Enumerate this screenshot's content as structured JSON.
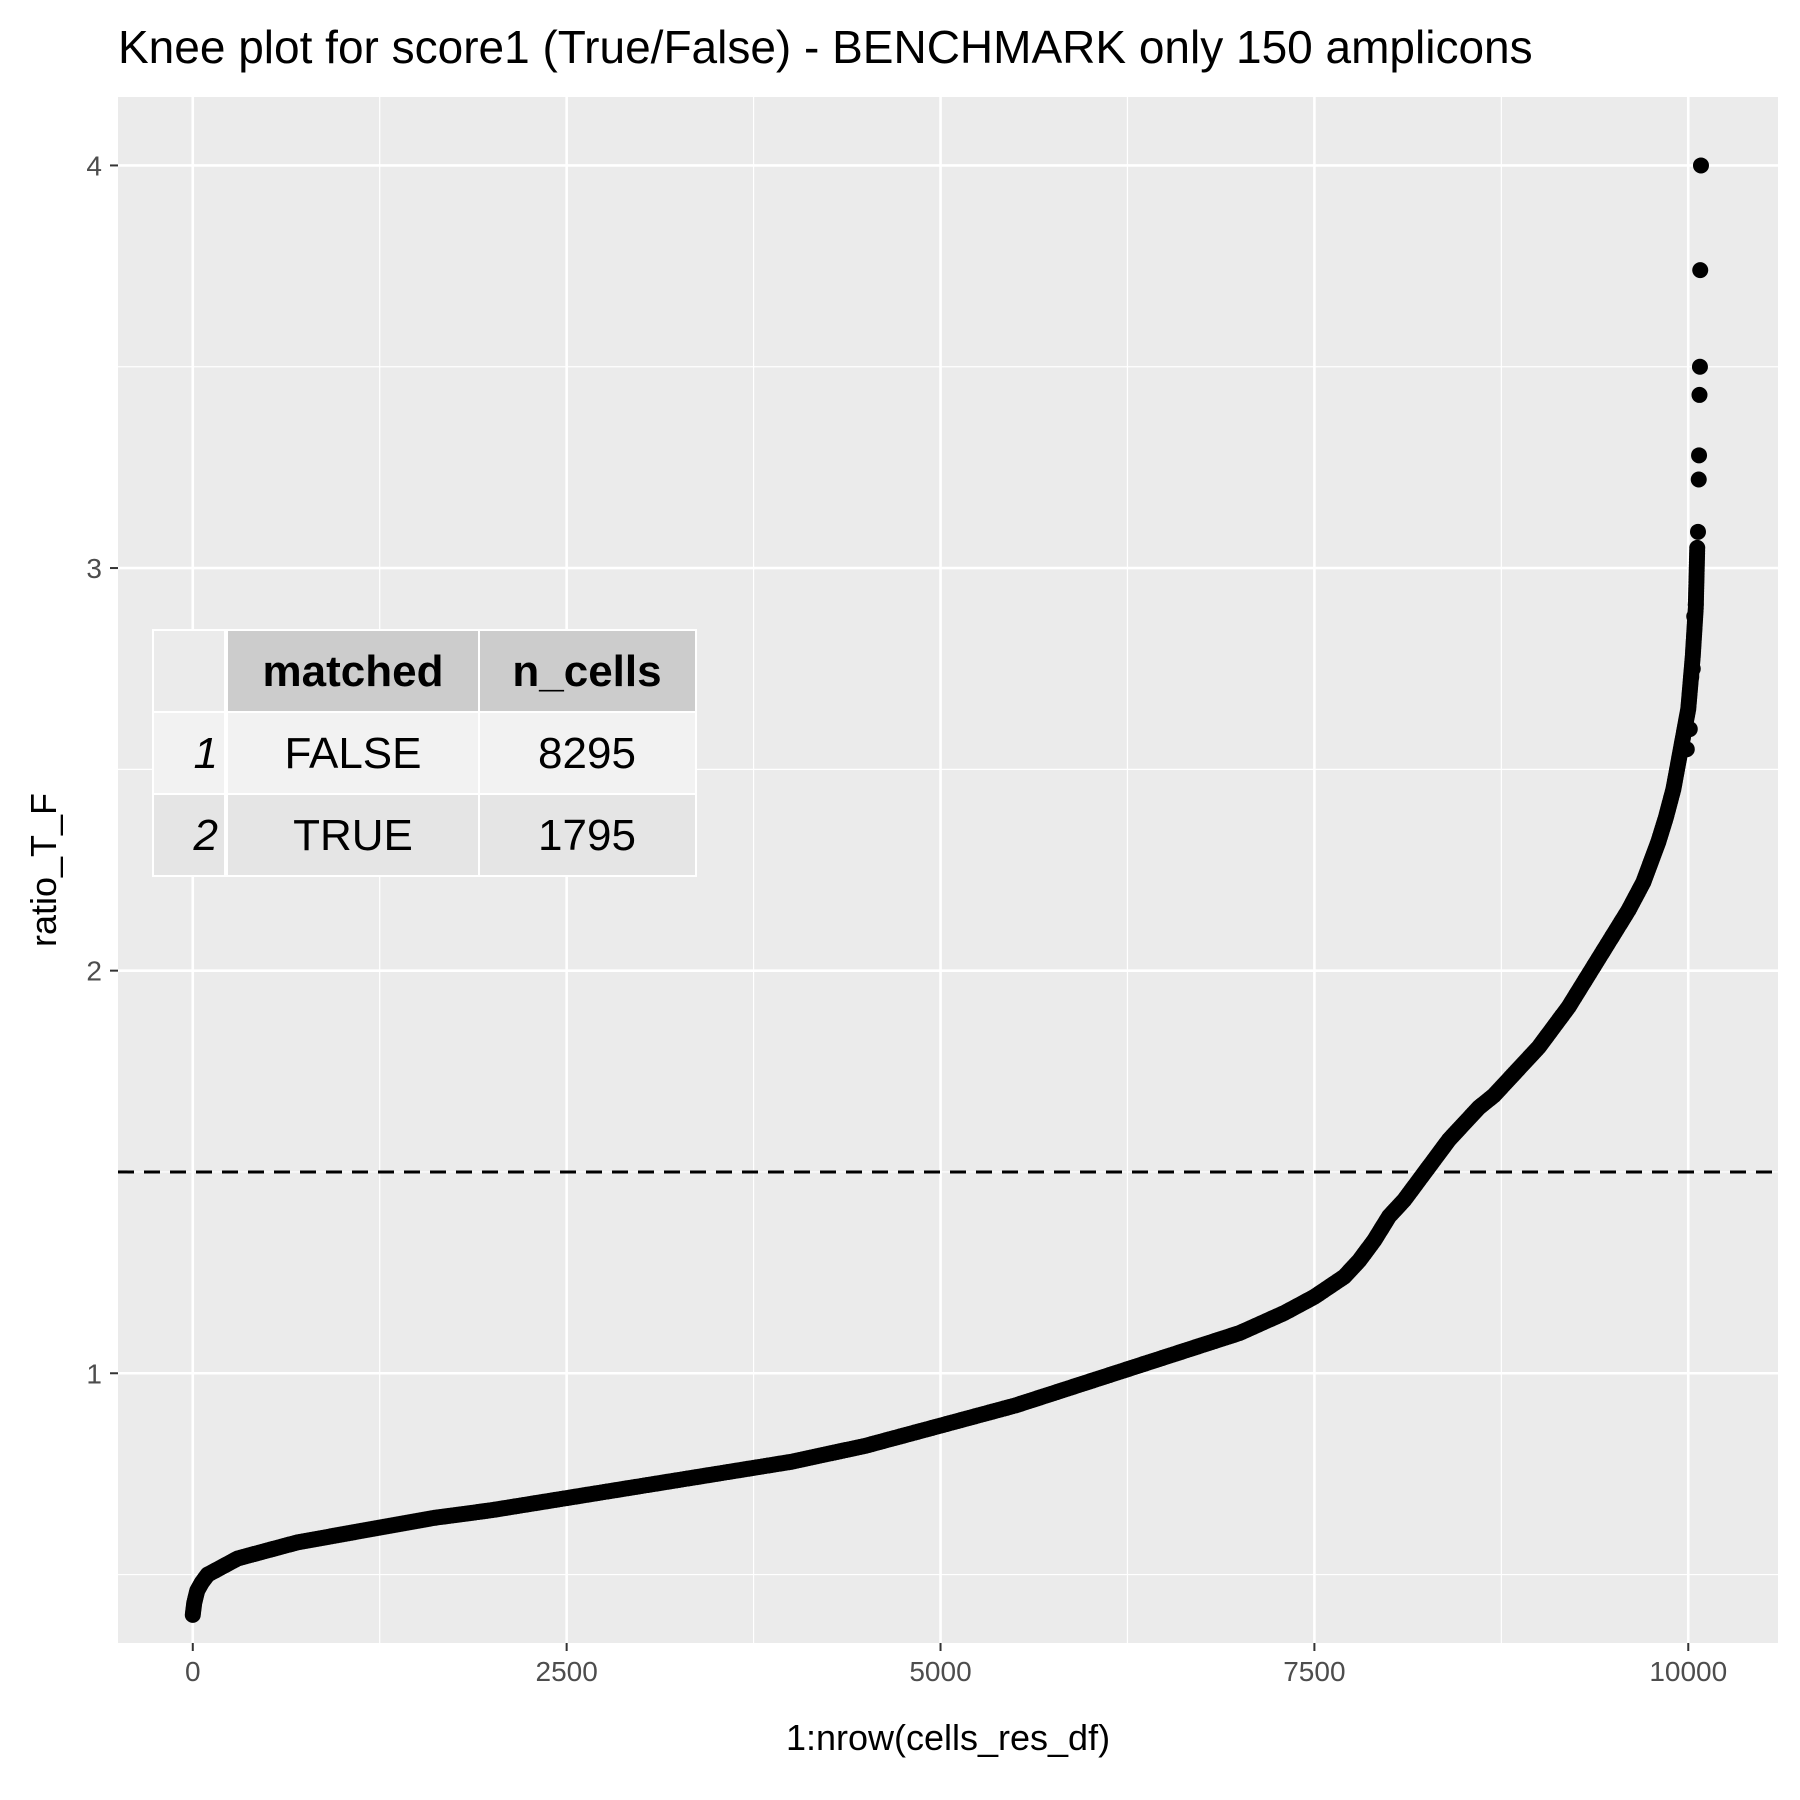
{
  "chart_data": {
    "type": "scatter",
    "title": "Knee plot for score1 (True/False) - BENCHMARK only 150 amplicons",
    "xlabel": "1:nrow(cells_res_df)",
    "ylabel": "ratio_T_F",
    "xlim": [
      -500,
      10600
    ],
    "ylim": [
      0.33,
      4.17
    ],
    "xticks": [
      0,
      2500,
      5000,
      7500,
      10000
    ],
    "xtick_labels": [
      "0",
      "2500",
      "5000",
      "7500",
      "10000"
    ],
    "yticks": [
      1,
      2,
      3,
      4
    ],
    "ytick_labels": [
      "1",
      "2",
      "3",
      "4"
    ],
    "grid": true,
    "hline": {
      "y": 1.5,
      "style": "dashed"
    },
    "point_color": "#000000",
    "background": "#ebebeb",
    "curve": {
      "x": [
        0,
        10,
        30,
        60,
        100,
        200,
        300,
        500,
        700,
        1000,
        1300,
        1600,
        2000,
        2500,
        3000,
        3500,
        4000,
        4500,
        5000,
        5500,
        6000,
        6500,
        7000,
        7300,
        7500,
        7700,
        7800,
        7900,
        8000,
        8100,
        8200,
        8300,
        8400,
        8500,
        8600,
        8700,
        8800,
        8900,
        9000,
        9100,
        9200,
        9300,
        9400,
        9500,
        9600,
        9700,
        9750,
        9800,
        9850,
        9900,
        9950,
        10000,
        10030,
        10050,
        10060
      ],
      "y": [
        0.4,
        0.43,
        0.46,
        0.48,
        0.5,
        0.52,
        0.54,
        0.56,
        0.58,
        0.6,
        0.62,
        0.64,
        0.66,
        0.69,
        0.72,
        0.75,
        0.78,
        0.82,
        0.87,
        0.92,
        0.98,
        1.04,
        1.1,
        1.15,
        1.19,
        1.24,
        1.28,
        1.33,
        1.39,
        1.43,
        1.48,
        1.53,
        1.58,
        1.62,
        1.66,
        1.69,
        1.73,
        1.77,
        1.81,
        1.86,
        1.91,
        1.97,
        2.03,
        2.09,
        2.15,
        2.22,
        2.27,
        2.32,
        2.38,
        2.45,
        2.55,
        2.65,
        2.78,
        2.9,
        3.05
      ]
    },
    "top_points": [
      {
        "x": 9990,
        "y": 2.55
      },
      {
        "x": 10010,
        "y": 2.6
      },
      {
        "x": 10020,
        "y": 2.73
      },
      {
        "x": 10030,
        "y": 2.75
      },
      {
        "x": 10040,
        "y": 2.88
      },
      {
        "x": 10050,
        "y": 2.91
      },
      {
        "x": 10060,
        "y": 3.05
      },
      {
        "x": 10065,
        "y": 3.09
      },
      {
        "x": 10070,
        "y": 3.22
      },
      {
        "x": 10072,
        "y": 3.28
      },
      {
        "x": 10075,
        "y": 3.43
      },
      {
        "x": 10078,
        "y": 3.5
      },
      {
        "x": 10080,
        "y": 3.74
      },
      {
        "x": 10085,
        "y": 4.0
      }
    ]
  },
  "table": {
    "headers": [
      "",
      "matched",
      "n_cells"
    ],
    "rows": [
      {
        "index": "1",
        "matched": "FALSE",
        "n_cells": "8295"
      },
      {
        "index": "2",
        "matched": "TRUE",
        "n_cells": "1795"
      }
    ],
    "header_fill": "#cccccc",
    "row_fills": [
      "#f2f2f2",
      "#e5e5e5"
    ]
  }
}
